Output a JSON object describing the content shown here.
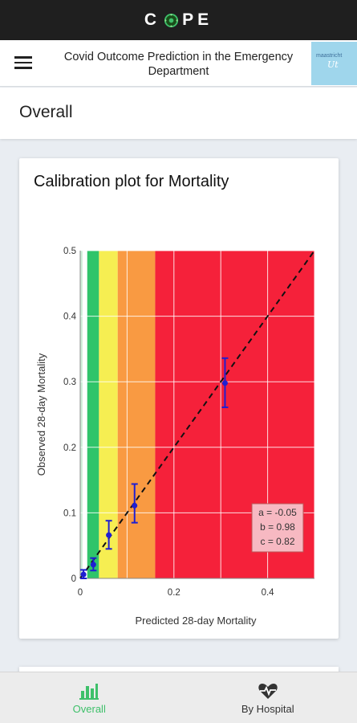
{
  "app": {
    "logo_text": "COPE",
    "logo_left": "C",
    "logo_right": "PE"
  },
  "header": {
    "title": "Covid Outcome Prediction in the Emergency Department",
    "logo_top_text": "maastricht"
  },
  "section": {
    "title": "Overall"
  },
  "card": {
    "title": "Calibration plot for Mortality"
  },
  "chart_data": {
    "type": "scatter",
    "title": "Calibration plot for Mortality",
    "xlabel": "Predicted 28-day Mortality",
    "ylabel": "Observed 28-day Mortality",
    "xlim": [
      0,
      0.5
    ],
    "ylim": [
      0,
      0.5
    ],
    "xticks": [
      "0",
      "0.2",
      "0.4"
    ],
    "yticks": [
      "0",
      "0.1",
      "0.2",
      "0.3",
      "0.4",
      "0.5"
    ],
    "grid": true,
    "reference_line": {
      "style": "dashed",
      "from": [
        0,
        0
      ],
      "to": [
        0.5,
        0.5
      ]
    },
    "risk_bands": [
      {
        "from": 0.0,
        "to": 0.005,
        "color": "#cfeed9"
      },
      {
        "from": 0.005,
        "to": 0.015,
        "color": "#ffffff"
      },
      {
        "from": 0.015,
        "to": 0.04,
        "color": "#2fc46a"
      },
      {
        "from": 0.04,
        "to": 0.08,
        "color": "#f6ee52"
      },
      {
        "from": 0.08,
        "to": 0.16,
        "color": "#f99a42"
      },
      {
        "from": 0.16,
        "to": 0.5,
        "color": "#f5213a"
      }
    ],
    "points": [
      {
        "x": 0.007,
        "y": 0.006,
        "low": 0.0,
        "high": 0.013
      },
      {
        "x": 0.028,
        "y": 0.021,
        "low": 0.012,
        "high": 0.031
      },
      {
        "x": 0.061,
        "y": 0.066,
        "low": 0.045,
        "high": 0.088
      },
      {
        "x": 0.116,
        "y": 0.111,
        "low": 0.085,
        "high": 0.144
      },
      {
        "x": 0.309,
        "y": 0.298,
        "low": 0.261,
        "high": 0.336
      }
    ],
    "point_color": "#1f1fd1",
    "annotation": [
      "a = -0.05",
      "b = 0.98",
      "c = 0.82"
    ]
  },
  "nav": {
    "items": [
      {
        "label": "Overall",
        "icon": "bar-chart-icon",
        "active": true
      },
      {
        "label": "By Hospital",
        "icon": "heart-pulse-icon",
        "active": false
      }
    ],
    "active_color": "#3ec06a"
  }
}
